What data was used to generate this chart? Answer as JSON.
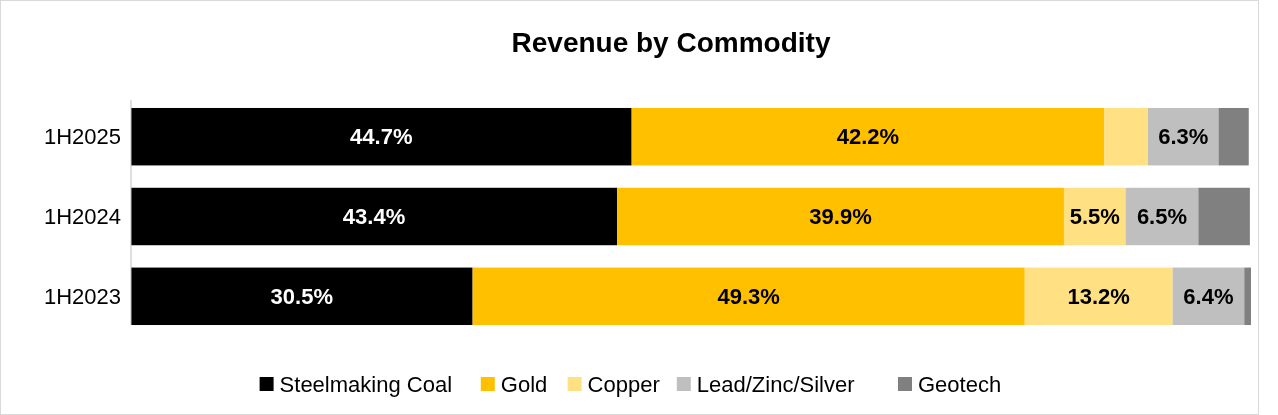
{
  "chart_data": {
    "type": "bar",
    "title": "Revenue by Commodity",
    "orientation": "horizontal",
    "stacked": true,
    "categories": [
      "1H2025",
      "1H2024",
      "1H2023"
    ],
    "xlim": [
      0,
      100
    ],
    "tick_labels": "y",
    "legend": "bottom",
    "series": [
      {
        "name": "Steelmaking Coal",
        "color": "#000000",
        "values": [
          44.7,
          43.4,
          30.5
        ],
        "value_labels": [
          "44.7%",
          "43.4%",
          "30.5%"
        ]
      },
      {
        "name": "Gold",
        "color": "#ffc000",
        "values": [
          42.2,
          39.9,
          49.3
        ],
        "value_labels": [
          "42.2%",
          "39.9%",
          "49.3%"
        ]
      },
      {
        "name": "Copper",
        "color": "#ffe083",
        "values": [
          3.9,
          5.5,
          13.2
        ],
        "value_labels": [
          null,
          "5.5%",
          "13.2%"
        ]
      },
      {
        "name": "Lead/Zinc/Silver",
        "color": "#bfbfbf",
        "values": [
          6.3,
          6.5,
          6.4
        ],
        "value_labels": [
          "6.3%",
          "6.5%",
          "6.4%"
        ]
      },
      {
        "name": "Geotech",
        "color": "#808080",
        "values": [
          2.7,
          4.6,
          0.6
        ],
        "value_labels": [
          null,
          null,
          null
        ]
      }
    ]
  }
}
